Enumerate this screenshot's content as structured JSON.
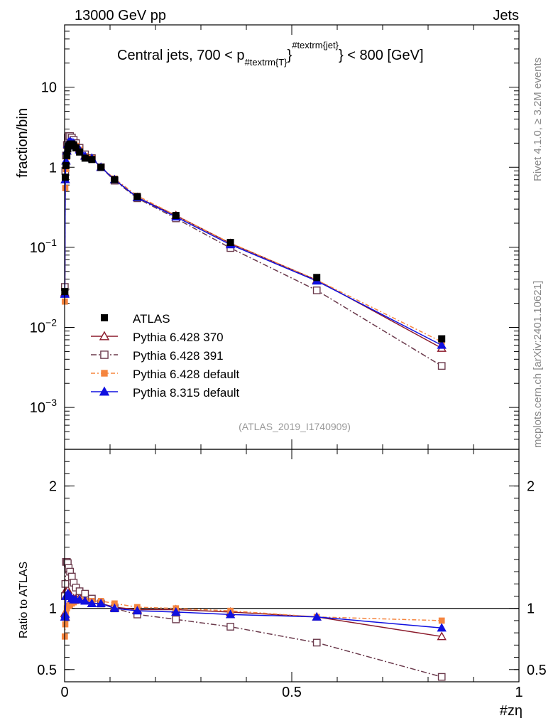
{
  "header": {
    "left": "13000 GeV pp",
    "right": "Jets"
  },
  "side_text": {
    "top": "Rivet 4.1.0, ≥ 3.2M events",
    "bottom": "mcplots.cern.ch [arXiv:2401.10621]"
  },
  "chart_data": {
    "type": "line",
    "title": "Central jets, 700 < p",
    "title_sub": "#textrm{T}",
    "title_sup": "#textrm{jet}",
    "title_tail": "} < 800 [GeV]",
    "watermark": "(ATLAS_2019_I1740909)",
    "ylabel": "fraction/bin",
    "ratio_ylabel": "Ratio to ATLAS",
    "xlabel": "#zη",
    "xlim": [
      0,
      1
    ],
    "ylim": [
      0.0003,
      60
    ],
    "ratio_ylim": [
      0.4,
      2.3
    ],
    "yscale": "log",
    "x_ticks": [
      {
        "v": 0,
        "label": "0"
      },
      {
        "v": 0.5,
        "label": "0.5"
      },
      {
        "v": 1,
        "label": "1"
      }
    ],
    "y_ticks": [
      {
        "v": 10,
        "base": "10",
        "exp": ""
      },
      {
        "v": 1,
        "base": "1",
        "exp": ""
      },
      {
        "v": 0.1,
        "base": "10",
        "exp": "−1"
      },
      {
        "v": 0.01,
        "base": "10",
        "exp": "−2"
      },
      {
        "v": 0.001,
        "base": "10",
        "exp": "−3"
      }
    ],
    "ratio_ticks": [
      {
        "v": 2,
        "label": "2"
      },
      {
        "v": 1,
        "label": "1"
      },
      {
        "v": 0.5,
        "label": "0.5"
      }
    ],
    "x": [
      0.0005,
      0.0015,
      0.003,
      0.005,
      0.007,
      0.009,
      0.012,
      0.016,
      0.02,
      0.025,
      0.033,
      0.045,
      0.06,
      0.08,
      0.11,
      0.16,
      0.245,
      0.365,
      0.555,
      0.83
    ],
    "data": {
      "name": "ATLAS",
      "values": [
        0.028,
        0.75,
        1.05,
        1.4,
        1.7,
        1.85,
        1.95,
        1.95,
        1.9,
        1.75,
        1.55,
        1.3,
        1.25,
        1.0,
        0.7,
        0.43,
        0.25,
        0.115,
        0.042,
        0.0072
      ]
    },
    "series": [
      {
        "name": "Pythia 6.428 370",
        "color": "#8b1a2b",
        "marker": "triangle-open",
        "dash": "",
        "values": [
          0.027,
          0.7,
          1.2,
          1.6,
          1.95,
          2.05,
          2.15,
          2.1,
          2.05,
          1.9,
          1.7,
          1.4,
          1.3,
          1.0,
          0.7,
          0.42,
          0.25,
          0.112,
          0.039,
          0.0055
        ],
        "ratio": [
          0.96,
          0.93,
          1.15,
          1.15,
          1.15,
          1.12,
          1.1,
          1.08,
          1.08,
          1.08,
          1.09,
          1.07,
          1.04,
          1.04,
          1.01,
          0.99,
          0.99,
          0.97,
          0.93,
          0.77
        ]
      },
      {
        "name": "Pythia 6.428 391",
        "color": "#6b3a4c",
        "marker": "square-open",
        "dash": "8,3,2,3",
        "values": [
          0.032,
          0.9,
          1.4,
          1.9,
          2.35,
          2.45,
          2.45,
          2.35,
          2.2,
          2.0,
          1.75,
          1.45,
          1.3,
          1.0,
          0.68,
          0.41,
          0.23,
          0.098,
          0.029,
          0.0033
        ],
        "ratio": [
          1.1,
          1.2,
          1.38,
          1.38,
          1.37,
          1.33,
          1.3,
          1.26,
          1.21,
          1.17,
          1.14,
          1.12,
          1.08,
          1.04,
          1.0,
          0.95,
          0.91,
          0.85,
          0.72,
          0.44
        ]
      },
      {
        "name": "Pythia 6.428 default",
        "color": "#f5853f",
        "marker": "square-filled",
        "dash": "6,3,2,3",
        "values": [
          0.021,
          0.55,
          0.95,
          1.35,
          1.7,
          1.85,
          1.95,
          1.95,
          1.95,
          1.85,
          1.65,
          1.38,
          1.3,
          1.0,
          0.72,
          0.44,
          0.25,
          0.113,
          0.039,
          0.0066
        ],
        "ratio": [
          0.77,
          0.87,
          0.95,
          1.0,
          1.02,
          1.02,
          1.03,
          1.04,
          1.05,
          1.06,
          1.07,
          1.06,
          1.06,
          1.06,
          1.04,
          1.01,
          1.0,
          0.98,
          0.93,
          0.9
        ]
      },
      {
        "name": "Pythia 8.315 default",
        "color": "#1010e0",
        "marker": "triangle-filled",
        "dash": "",
        "values": [
          0.026,
          0.7,
          1.2,
          1.6,
          1.95,
          2.05,
          2.1,
          2.05,
          2.0,
          1.85,
          1.65,
          1.38,
          1.3,
          1.0,
          0.7,
          0.42,
          0.24,
          0.108,
          0.038,
          0.006
        ],
        "ratio": [
          0.93,
          0.95,
          1.1,
          1.1,
          1.12,
          1.11,
          1.1,
          1.08,
          1.07,
          1.07,
          1.07,
          1.06,
          1.04,
          1.04,
          1.0,
          0.98,
          0.97,
          0.95,
          0.93,
          0.84
        ]
      }
    ]
  }
}
